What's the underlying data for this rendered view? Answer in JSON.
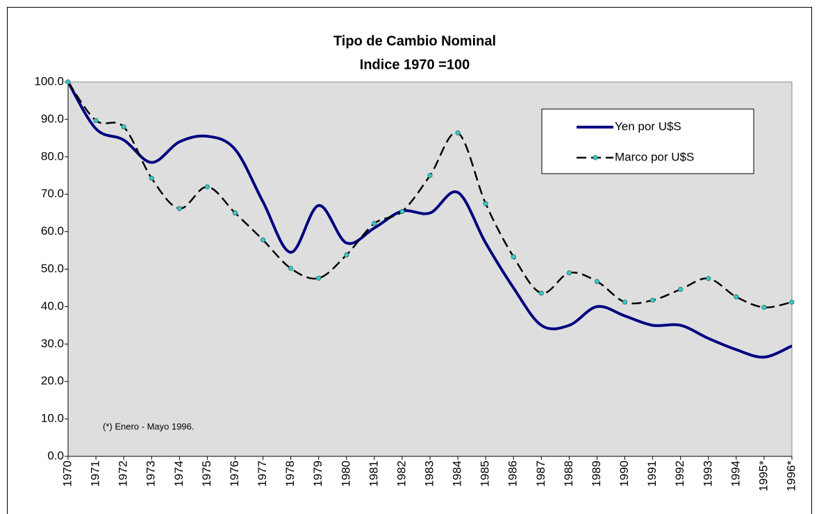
{
  "chart_data": {
    "type": "line",
    "title": "Tipo de Cambio Nominal",
    "subtitle": "Indice 1970 =100",
    "annotation": "(*) Enero - Mayo 1996.",
    "categories": [
      "1970",
      "1971",
      "1972",
      "1973",
      "1974",
      "1975",
      "1976",
      "1977",
      "1978",
      "1979",
      "1980",
      "1981",
      "1982",
      "1983",
      "1984",
      "1985",
      "1986",
      "1987",
      "1988",
      "1989",
      "1990",
      "1991",
      "1992",
      "1993",
      "1994",
      "1995*",
      "1996*"
    ],
    "series": [
      {
        "name": "Yen por U$S",
        "color": "#000080",
        "values": [
          100,
          87.5,
          84.5,
          78.5,
          84,
          85.5,
          82,
          68,
          54.5,
          67,
          57,
          61,
          65.5,
          65,
          70.5,
          57,
          45,
          35,
          35,
          40,
          37.5,
          35,
          35,
          31.5,
          28.5,
          26.5,
          29.5
        ]
      },
      {
        "name": "Marco por U$S",
        "color": "#000000",
        "marker_color": "#33cccc",
        "dashed": true,
        "values": [
          100,
          89.7,
          88,
          74.3,
          66.2,
          72,
          65,
          57.8,
          50.2,
          47.6,
          53.8,
          62.2,
          65.4,
          75,
          86.4,
          67.5,
          53.3,
          43.6,
          49,
          46.7,
          41.2,
          41.7,
          44.6,
          47.5,
          42.6,
          39.8,
          41.2
        ]
      }
    ],
    "ylim": [
      0,
      100
    ],
    "yticks": [
      {
        "value": 0,
        "label": "0.0"
      },
      {
        "value": 10,
        "label": "10.0"
      },
      {
        "value": 20,
        "label": "20.0"
      },
      {
        "value": 30,
        "label": "30.0"
      },
      {
        "value": 40,
        "label": "40.0"
      },
      {
        "value": 50,
        "label": "50.0"
      },
      {
        "value": 60,
        "label": "60.0"
      },
      {
        "value": 70,
        "label": "70.0"
      },
      {
        "value": 80,
        "label": "80.0"
      },
      {
        "value": 90,
        "label": "90.0"
      },
      {
        "value": 100,
        "label": "100.0"
      }
    ],
    "smooth": true,
    "grid": false,
    "plot_background": "#dedede",
    "legend_position": "upper right"
  }
}
